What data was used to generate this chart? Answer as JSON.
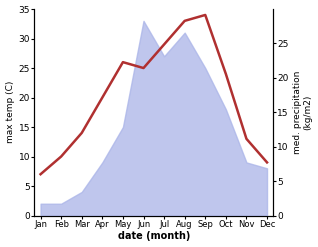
{
  "months": [
    "Jan",
    "Feb",
    "Mar",
    "Apr",
    "May",
    "Jun",
    "Jul",
    "Aug",
    "Sep",
    "Oct",
    "Nov",
    "Dec"
  ],
  "temp": [
    7,
    10,
    14,
    20,
    26,
    25,
    29,
    33,
    34,
    24,
    13,
    9
  ],
  "precip_left_scale": [
    2,
    2,
    4,
    9,
    15,
    33,
    27,
    31,
    25,
    18,
    9,
    8
  ],
  "temp_ylim": [
    0,
    35
  ],
  "precip_ylim": [
    0,
    30
  ],
  "temp_yticks": [
    0,
    5,
    10,
    15,
    20,
    25,
    30,
    35
  ],
  "precip_yticks": [
    0,
    5,
    10,
    15,
    20,
    25
  ],
  "ylabel_left": "max temp (C)",
  "ylabel_right": "med. precipitation\n(kg/m2)",
  "xlabel": "date (month)",
  "line_color": "#b03030",
  "fill_color": "#aab4e8",
  "fill_alpha": 0.75,
  "bg_color": "#ffffff",
  "line_width": 1.8
}
